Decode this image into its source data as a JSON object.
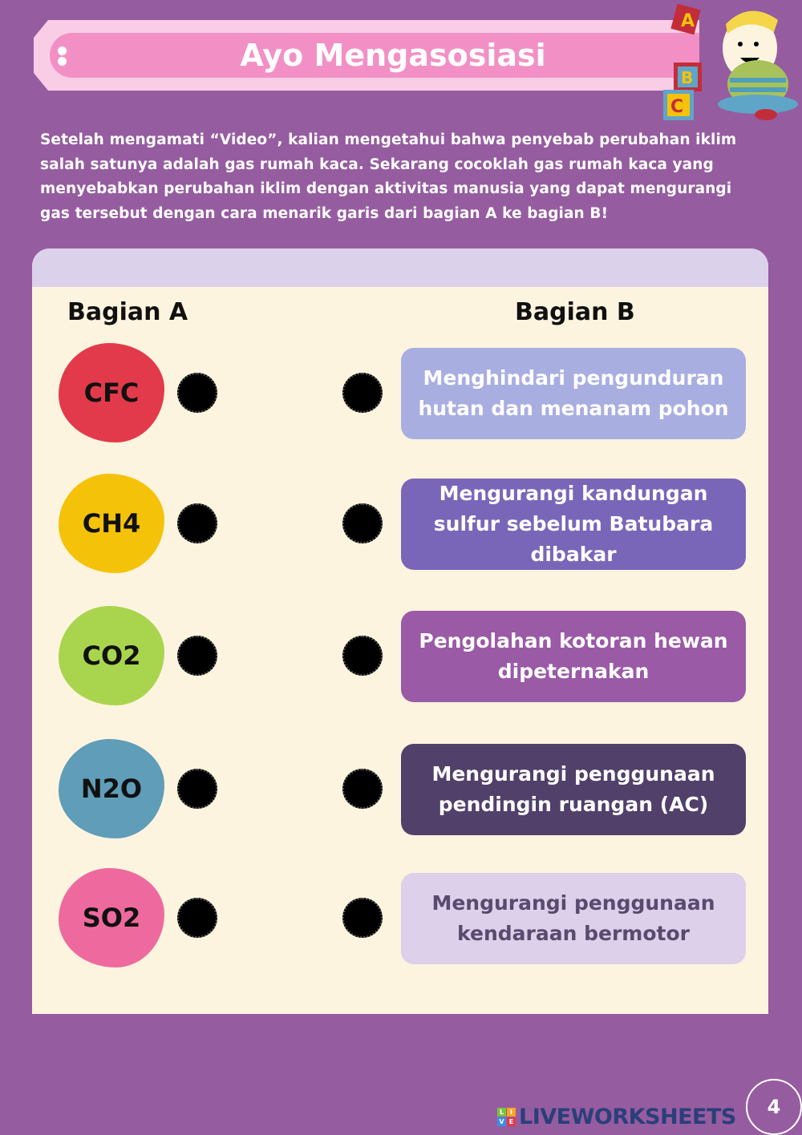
{
  "header": {
    "title": "Ayo Mengasosiasi"
  },
  "intro": "Setelah mengamati “Video”, kalian mengetahui bahwa penyebab perubahan iklim salah satunya  adalah gas rumah kaca. Sekarang cocoklah gas rumah kaca yang menyebabkan perubahan iklim dengan aktivitas manusia yang dapat mengurangi gas tersebut dengan cara menarik garis dari bagian A ke bagian B!",
  "mascot": {
    "blocks": [
      "A",
      "B",
      "C"
    ]
  },
  "section_a": {
    "title": "Bagian A",
    "items": [
      {
        "label": "CFC",
        "color": "#e23a4a"
      },
      {
        "label": "CH4",
        "color": "#f5c20a"
      },
      {
        "label": "CO2",
        "color": "#a9d54e"
      },
      {
        "label": "N2O",
        "color": "#5f9db8"
      },
      {
        "label": "SO2",
        "color": "#ee6a9e"
      }
    ]
  },
  "section_b": {
    "title": "Bagian B",
    "items": [
      {
        "label": "Menghindari pengunduran hutan dan menanam pohon",
        "color": "#a9aee1"
      },
      {
        "label": "Mengurangi kandungan sulfur sebelum Batubara dibakar",
        "color": "#7a66b8"
      },
      {
        "label": "Pengolahan kotoran hewan dipeternakan",
        "color": "#9a5aa6"
      },
      {
        "label": "Mengurangi penggunaan pendingin ruangan (AC)",
        "color": "#51406a"
      },
      {
        "label": "Mengurangi penggunaan kendaraan bermotor",
        "color": "#dcd0ea"
      }
    ]
  },
  "footer": {
    "logo": "LIVEWORKSHEETS",
    "logo_icon": "LIVE",
    "page": "4"
  }
}
